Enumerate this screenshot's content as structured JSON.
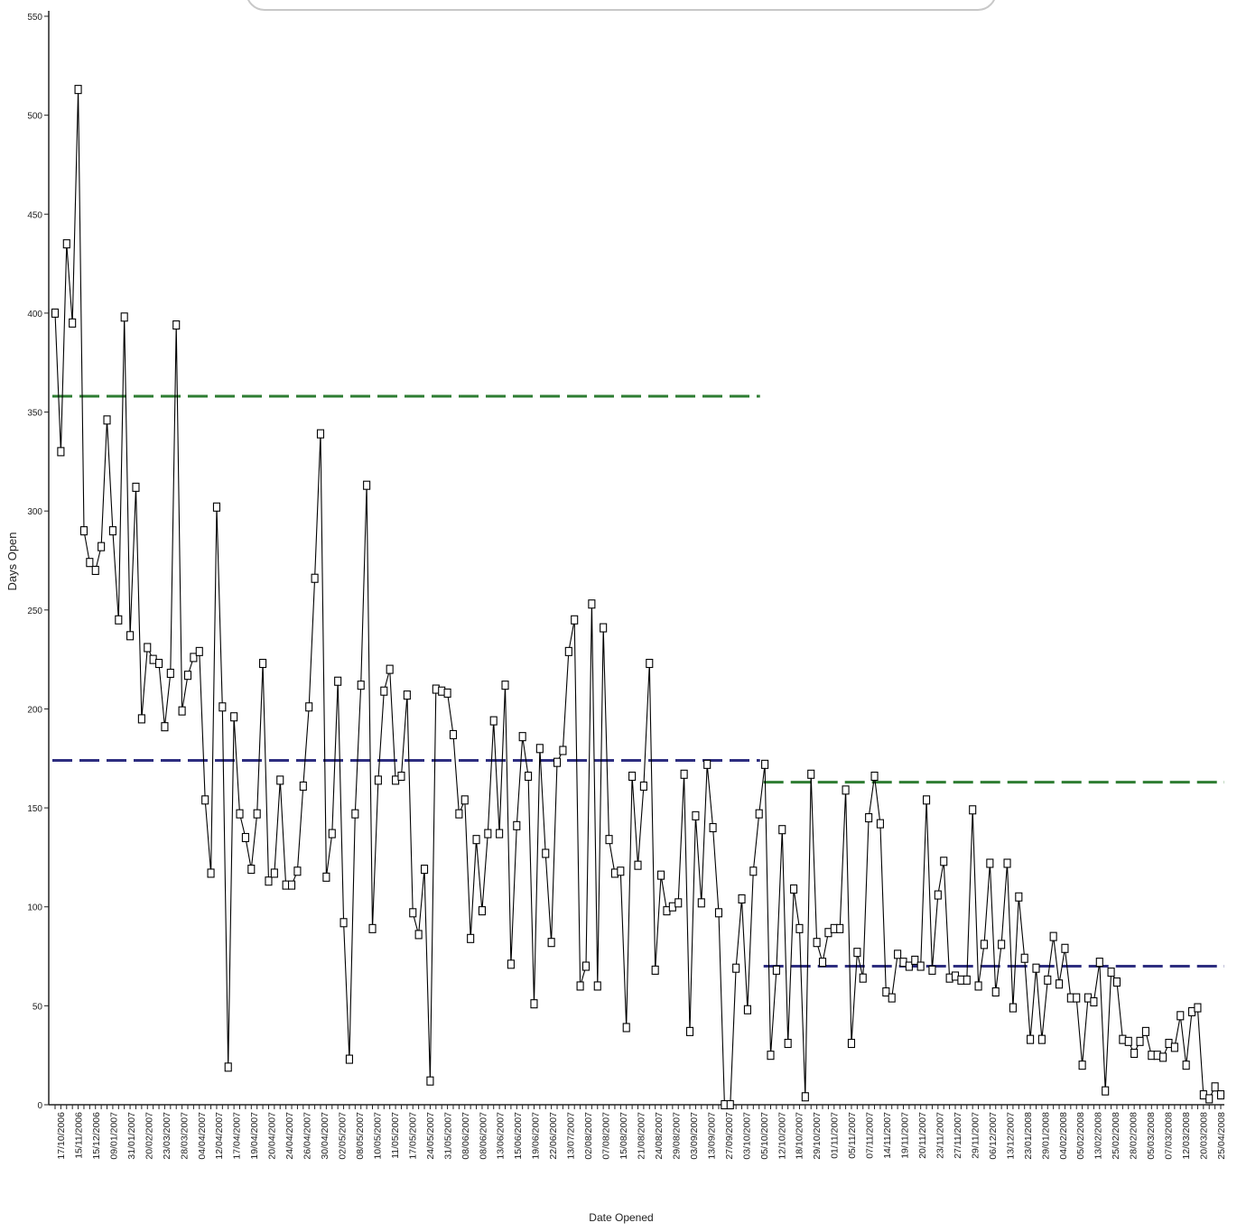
{
  "chart_data": {
    "type": "line",
    "title": "",
    "xlabel": "Date Opened",
    "ylabel": "Days Open",
    "ylim": [
      0,
      550
    ],
    "y_ticks": [
      0,
      50,
      100,
      150,
      200,
      250,
      300,
      350,
      400,
      450,
      500,
      550
    ],
    "grid": false,
    "legend": "none",
    "x_tick_labels": [
      "17/10/2006",
      "15/11/2006",
      "15/12/2006",
      "09/01/2007",
      "31/01/2007",
      "20/02/2007",
      "23/03/2007",
      "28/03/2007",
      "04/04/2007",
      "12/04/2007",
      "17/04/2007",
      "19/04/2007",
      "20/04/2007",
      "24/04/2007",
      "26/04/2007",
      "30/04/2007",
      "02/05/2007",
      "08/05/2007",
      "10/05/2007",
      "11/05/2007",
      "17/05/2007",
      "24/05/2007",
      "31/05/2007",
      "08/06/2007",
      "08/06/2007",
      "13/06/2007",
      "15/06/2007",
      "19/06/2007",
      "22/06/2007",
      "13/07/2007",
      "02/08/2007",
      "07/08/2007",
      "15/08/2007",
      "21/08/2007",
      "24/08/2007",
      "29/08/2007",
      "03/09/2007",
      "13/09/2007",
      "27/09/2007",
      "03/10/2007",
      "05/10/2007",
      "12/10/2007",
      "18/10/2007",
      "29/10/2007",
      "01/11/2007",
      "05/11/2007",
      "07/11/2007",
      "14/11/2007",
      "19/11/2007",
      "20/11/2007",
      "23/11/2007",
      "27/11/2007",
      "29/11/2007",
      "06/12/2007",
      "13/12/2007",
      "23/01/2008",
      "29/01/2008",
      "04/02/2008",
      "05/02/2008",
      "13/02/2008",
      "25/02/2008",
      "28/02/2008",
      "05/03/2008",
      "07/03/2008",
      "12/03/2008",
      "20/03/2008",
      "25/04/2008"
    ],
    "series": [
      {
        "marker": "square",
        "color": "#000000",
        "values": [
          400,
          330,
          435,
          395,
          513,
          290,
          274,
          270,
          282,
          346,
          290,
          245,
          398,
          237,
          312,
          195,
          231,
          225,
          223,
          191,
          218,
          394,
          199,
          217,
          226,
          229,
          154,
          117,
          302,
          201,
          19,
          196,
          147,
          135,
          119,
          147,
          223,
          113,
          117,
          164,
          111,
          111,
          118,
          161,
          201,
          266,
          339,
          115,
          137,
          214,
          92,
          23,
          147,
          212,
          313,
          89,
          164,
          209,
          220,
          164,
          166,
          207,
          97,
          86,
          119,
          12,
          210,
          209,
          208,
          187,
          147,
          154,
          84,
          134,
          98,
          137,
          194,
          137,
          212,
          71,
          141,
          186,
          166,
          51,
          180,
          127,
          82,
          173,
          179,
          229,
          245,
          60,
          70,
          253,
          60,
          241,
          134,
          117,
          118,
          39,
          166,
          121,
          161,
          223,
          68,
          116,
          98,
          100,
          102,
          167,
          37,
          146,
          102,
          172,
          140,
          97,
          0,
          0,
          69,
          104,
          48,
          118,
          147,
          172,
          25,
          68,
          139,
          31,
          109,
          89,
          4,
          167,
          82,
          72,
          87,
          89,
          89,
          159,
          31,
          77,
          64,
          145,
          166,
          142,
          57,
          54,
          76,
          72,
          70,
          73,
          70,
          154,
          68,
          106,
          123,
          64,
          65,
          63,
          63,
          149,
          60,
          81,
          122,
          57,
          81,
          122,
          49,
          105,
          74,
          33,
          69,
          33,
          63,
          85,
          61,
          79,
          54,
          54,
          20,
          54,
          52,
          72,
          7,
          67,
          62,
          33,
          32,
          26,
          32,
          37,
          25,
          25,
          24,
          31,
          29,
          45,
          20,
          47,
          49,
          5,
          3,
          9,
          5
        ]
      }
    ],
    "reference_lines": [
      {
        "style": "dashed",
        "color": "#2e7d32",
        "y": 358,
        "x_start_frac": 0,
        "x_end_frac": 0.605
      },
      {
        "style": "dashed",
        "color": "#2e2e80",
        "y": 174,
        "x_start_frac": 0,
        "x_end_frac": 0.605
      },
      {
        "style": "dashed",
        "color": "#2e7d32",
        "y": 163,
        "x_start_frac": 0.605,
        "x_end_frac": 1
      },
      {
        "style": "dashed",
        "color": "#2e2e80",
        "y": 70,
        "x_start_frac": 0.605,
        "x_end_frac": 1
      }
    ]
  }
}
